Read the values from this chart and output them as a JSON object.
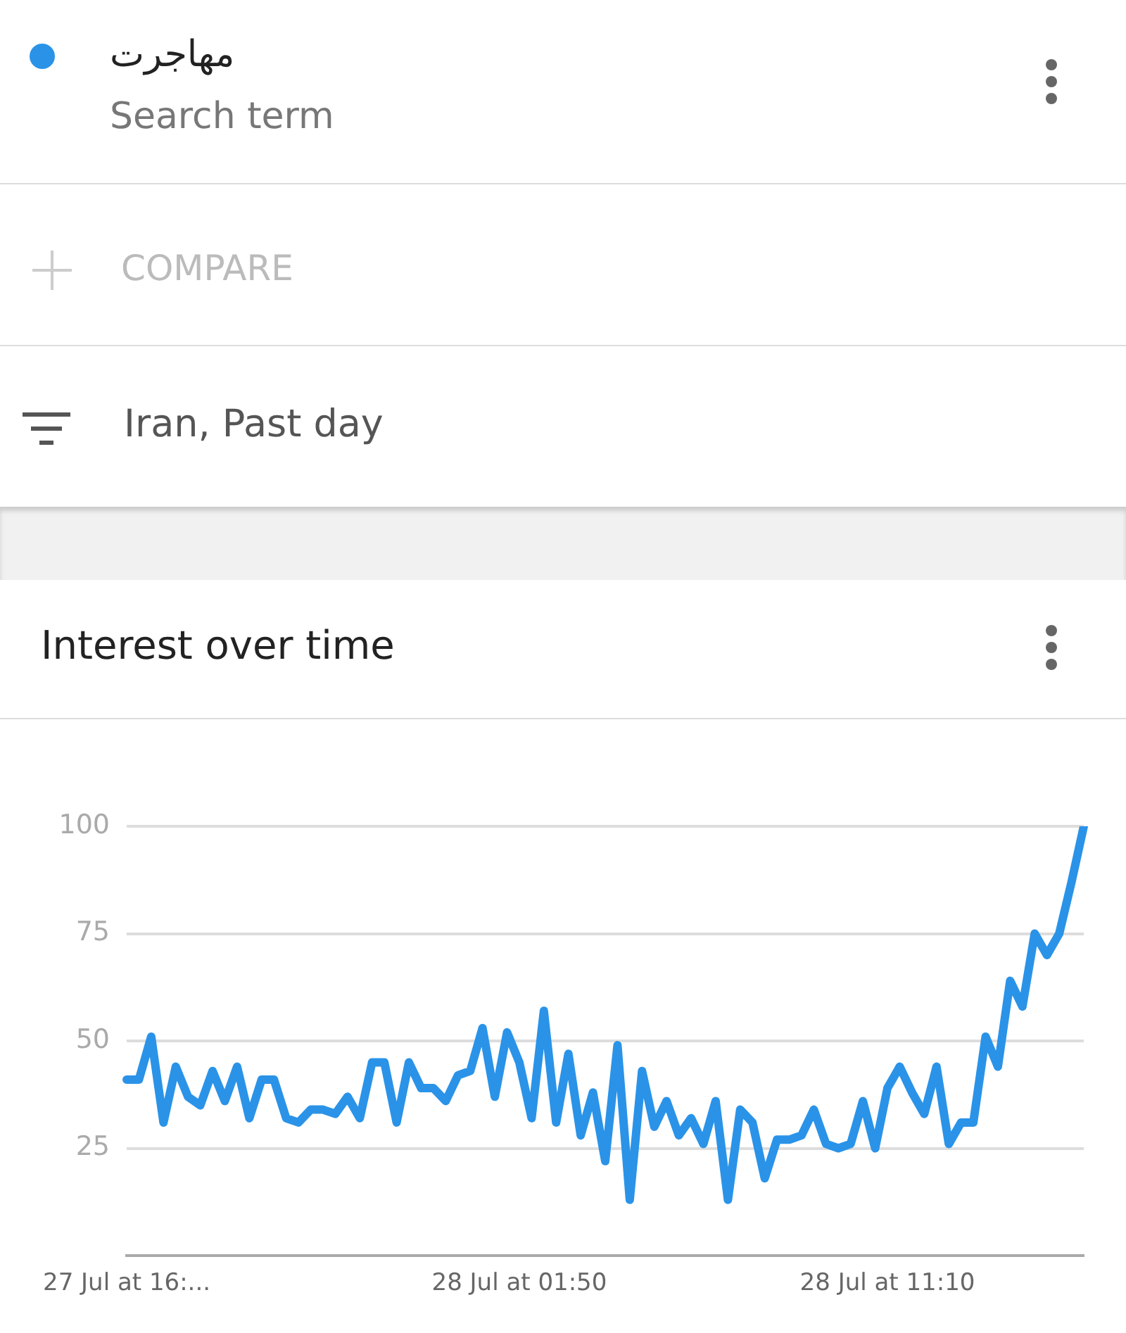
{
  "chart_data": {
    "type": "line",
    "title": "Interest over time",
    "annotations": [
      "Search term",
      "COMPARE",
      "Iran, Past day"
    ],
    "legend": "top",
    "grid": "y",
    "marker": "none",
    "line_style": "solid",
    "categories": [
      "27 Jul at 16:...",
      null,
      null,
      null,
      null,
      null,
      null,
      null,
      null,
      null,
      null,
      null,
      null,
      null,
      null,
      null,
      null,
      null,
      null,
      null,
      null,
      null,
      null,
      null,
      null,
      null,
      null,
      null,
      null,
      null,
      null,
      null,
      "28 Jul at 01:50",
      null,
      null,
      null,
      null,
      null,
      null,
      null,
      null,
      null,
      null,
      null,
      null,
      null,
      null,
      null,
      null,
      null,
      null,
      null,
      null,
      null,
      null,
      null,
      null,
      null,
      null,
      null,
      null,
      null,
      "28 Jul at 11:10",
      null,
      null,
      null,
      null,
      null,
      null,
      null,
      null,
      null,
      null,
      null,
      null,
      null,
      null,
      null,
      null
    ],
    "ylim": [
      0,
      100
    ],
    "yticks": [
      25,
      50,
      75,
      100
    ],
    "series": [
      {
        "name": "مهاجرت",
        "color": "#2a93e8",
        "values": [
          41,
          41,
          51,
          31,
          44,
          37,
          35,
          43,
          36,
          44,
          32,
          41,
          41,
          32,
          31,
          34,
          34,
          33,
          37,
          32,
          45,
          45,
          31,
          45,
          39,
          39,
          36,
          42,
          43,
          53,
          37,
          52,
          45,
          32,
          57,
          31,
          47,
          28,
          38,
          22,
          49,
          13,
          43,
          30,
          36,
          28,
          32,
          26,
          36,
          13,
          34,
          31,
          18,
          27,
          27,
          28,
          34,
          26,
          25,
          26,
          36,
          25,
          39,
          44,
          38,
          33,
          44,
          26,
          31,
          31,
          51,
          44,
          64,
          58,
          75,
          70,
          75,
          87,
          100
        ]
      }
    ]
  }
}
